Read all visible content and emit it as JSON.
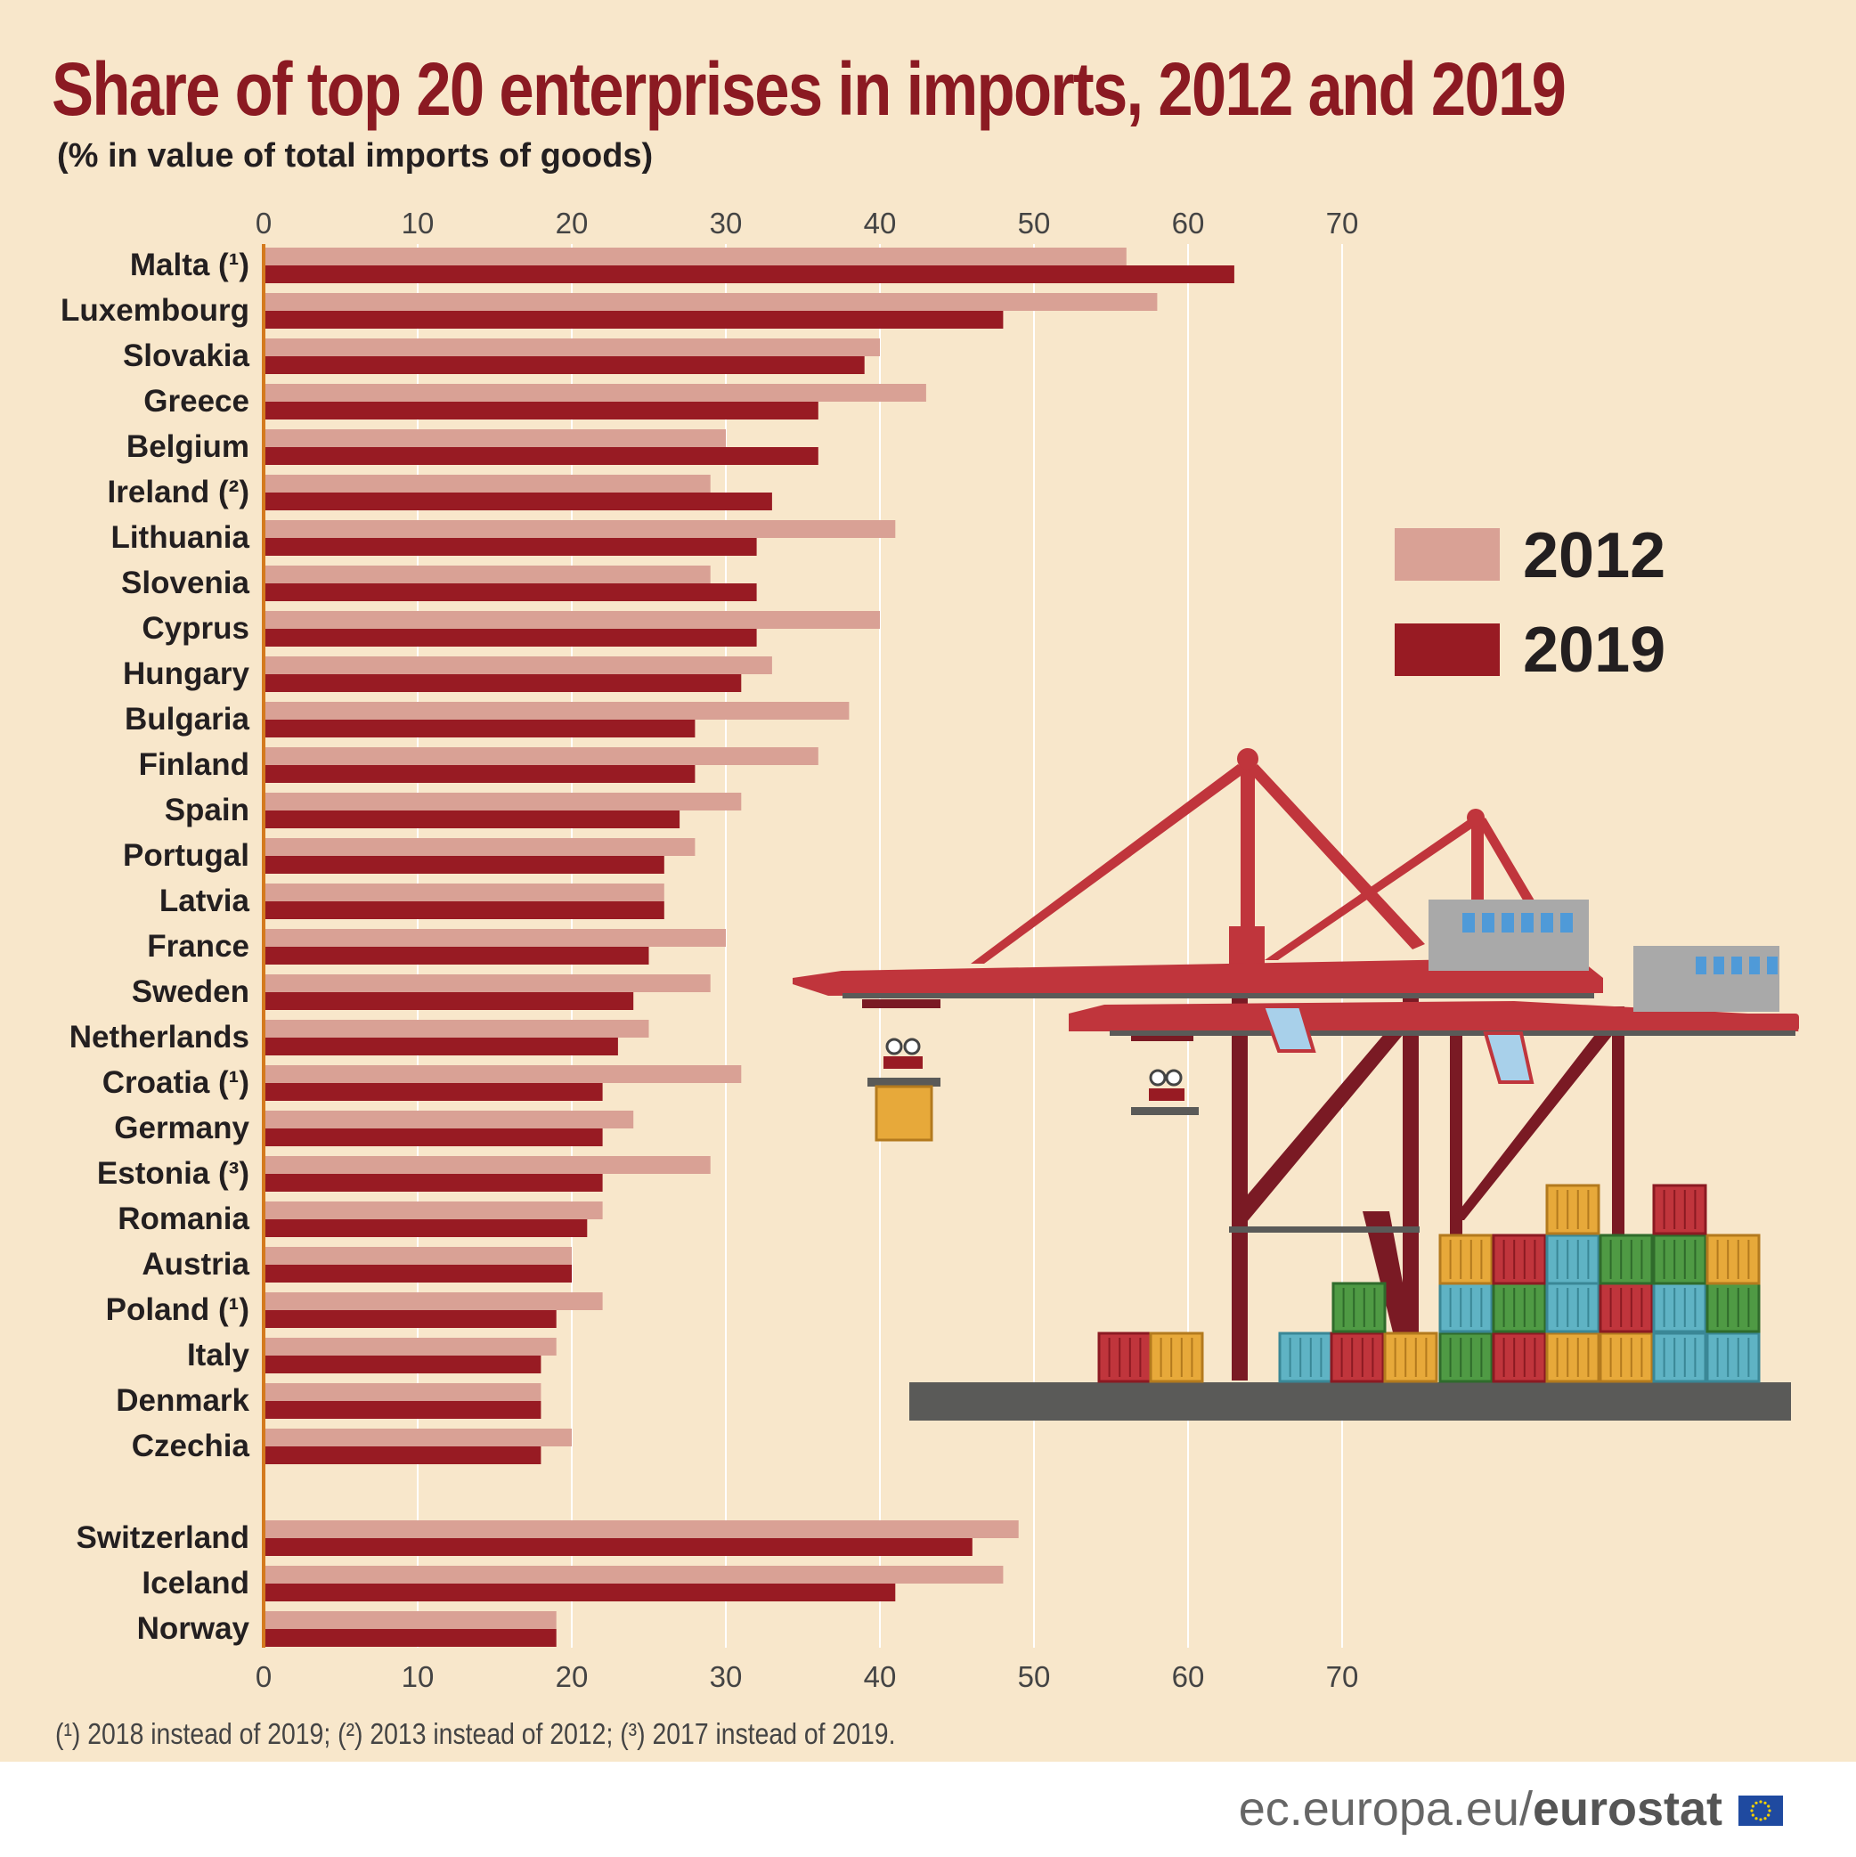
{
  "title": "Share of top 20 enterprises in imports, 2012 and 2019",
  "subtitle": "(% in value of total imports of goods)",
  "footnote": "(¹) 2018 instead of 2019; (²) 2013 instead of 2012; (³) 2017 instead of 2019.",
  "footer": {
    "domain": "ec.europa.eu/",
    "brand": "eurostat"
  },
  "legend": {
    "label_2012": "2012",
    "label_2019": "2019"
  },
  "colors": {
    "c2012": "#d9a195",
    "c2019": "#981b23",
    "axis": "#d47a1e",
    "background": "#f8e7cb"
  },
  "chart_data": {
    "type": "bar",
    "orientation": "horizontal",
    "title": "Share of top 20 enterprises in imports, 2012 and 2019",
    "xlabel": "% in value of total imports of goods",
    "xlim": [
      0,
      70
    ],
    "xticks": [
      0,
      10,
      20,
      30,
      40,
      50,
      60,
      70
    ],
    "grid": true,
    "legend_position": "right",
    "categories": [
      "Malta (¹)",
      "Luxembourg",
      "Slovakia",
      "Greece",
      "Belgium",
      "Ireland (²)",
      "Lithuania",
      "Slovenia",
      "Cyprus",
      "Hungary",
      "Bulgaria",
      "Finland",
      "Spain",
      "Portugal",
      "Latvia",
      "France",
      "Sweden",
      "Netherlands",
      "Croatia (¹)",
      "Germany",
      "Estonia (³)",
      "Romania",
      "Austria",
      "Poland (¹)",
      "Italy",
      "Denmark",
      "Czechia",
      "Switzerland",
      "Iceland",
      "Norway"
    ],
    "group_break_before": "Switzerland",
    "series": [
      {
        "name": "2012",
        "values": [
          56,
          58,
          40,
          43,
          30,
          29,
          41,
          29,
          40,
          33,
          38,
          36,
          31,
          28,
          26,
          30,
          29,
          25,
          31,
          24,
          29,
          22,
          20,
          22,
          19,
          18,
          20,
          49,
          48,
          19
        ]
      },
      {
        "name": "2019",
        "values": [
          63,
          48,
          39,
          36,
          36,
          33,
          32,
          32,
          32,
          31,
          28,
          28,
          27,
          26,
          26,
          25,
          24,
          23,
          22,
          22,
          22,
          21,
          20,
          19,
          18,
          18,
          18,
          46,
          41,
          19
        ]
      }
    ]
  }
}
